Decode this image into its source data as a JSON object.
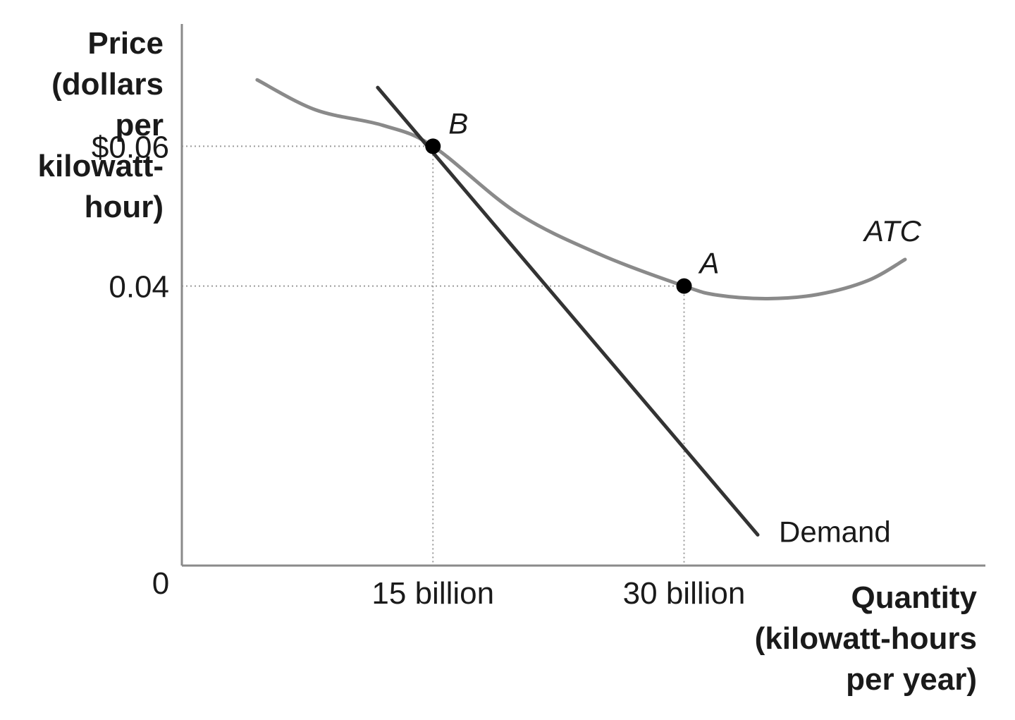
{
  "chart_data": {
    "type": "line",
    "ylabel_lines": [
      "Price",
      "(dollars",
      "per",
      "kilowatt-",
      "hour)"
    ],
    "xlabel_lines": [
      "Quantity",
      "(kilowatt-hours",
      "per year)"
    ],
    "origin_label": "0",
    "x_ticks": [
      {
        "value": 15,
        "label": "15 billion"
      },
      {
        "value": 30,
        "label": "30 billion"
      }
    ],
    "y_ticks": [
      {
        "value": 0.06,
        "label": "$0.06"
      },
      {
        "value": 0.04,
        "label": "0.04"
      }
    ],
    "xlim": [
      0,
      48
    ],
    "ylim": [
      0,
      0.0775
    ],
    "grid": false,
    "reference_lines": [
      {
        "x": 15,
        "y": 0.06
      },
      {
        "x": 30,
        "y": 0.04
      }
    ],
    "series": [
      {
        "name": "Demand",
        "color": "#333333",
        "x": [
          11.7,
          34.4
        ],
        "y": [
          0.0684,
          0.0044
        ]
      },
      {
        "name": "ATC",
        "color": "#8a8a8a",
        "x": [
          4.5,
          8,
          12,
          15,
          20,
          25,
          30,
          32,
          35,
          38,
          41,
          43.2
        ],
        "y": [
          0.0695,
          0.0652,
          0.063,
          0.06,
          0.0505,
          0.0445,
          0.04,
          0.0387,
          0.0382,
          0.0388,
          0.0408,
          0.0438
        ]
      }
    ],
    "points": [
      {
        "label": "B",
        "x": 15,
        "y": 0.06
      },
      {
        "label": "A",
        "x": 30,
        "y": 0.04
      }
    ]
  }
}
